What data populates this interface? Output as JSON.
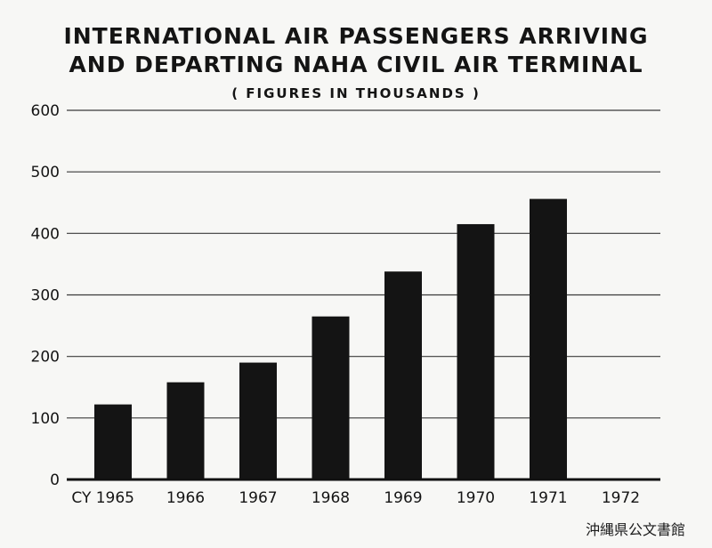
{
  "chart_data": {
    "type": "bar",
    "title": "INTERNATIONAL AIR PASSENGERS ARRIVING AND DEPARTING NAHA CIVIL AIR TERMINAL",
    "title_line1": "INTERNATIONAL AIR PASSENGERS ARRIVING",
    "title_line2": "AND DEPARTING NAHA CIVIL AIR TERMINAL",
    "subtitle": "( FIGURES IN THOUSANDS )",
    "category_prefix": "CY",
    "categories": [
      "1965",
      "1966",
      "1967",
      "1968",
      "1969",
      "1970",
      "1971",
      "1972"
    ],
    "values": [
      122,
      158,
      190,
      265,
      338,
      415,
      456,
      null
    ],
    "ylim": [
      0,
      600
    ],
    "yticks": [
      0,
      100,
      200,
      300,
      400,
      500,
      600
    ],
    "grid": true,
    "bar_color": "#141414"
  },
  "watermark": "沖縄県公文書館"
}
